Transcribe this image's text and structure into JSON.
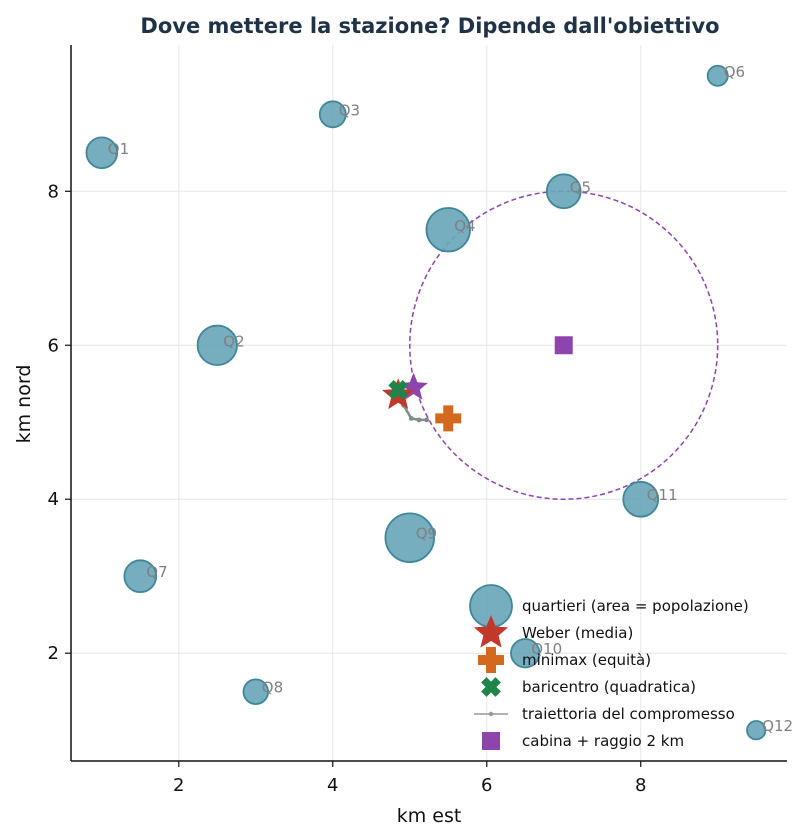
{
  "chart_data": {
    "type": "scatter",
    "title": "Dove mettere la stazione? Dipende dall'obiettivo",
    "xlabel": "km est",
    "ylabel": "km nord",
    "xlim": [
      0.6,
      9.9
    ],
    "ylim": [
      0.6,
      9.9
    ],
    "xticks": [
      2,
      4,
      6,
      8
    ],
    "yticks": [
      2,
      4,
      6,
      8
    ],
    "grid": true,
    "legend_position": "lower-right",
    "neighborhoods": [
      {
        "label": "Q1",
        "x": 1.0,
        "y": 8.5,
        "size": 1.4
      },
      {
        "label": "Q2",
        "x": 2.5,
        "y": 6.0,
        "size": 2.3
      },
      {
        "label": "Q3",
        "x": 4.0,
        "y": 9.0,
        "size": 1.0
      },
      {
        "label": "Q4",
        "x": 5.5,
        "y": 7.5,
        "size": 2.8
      },
      {
        "label": "Q5",
        "x": 7.0,
        "y": 8.0,
        "size": 1.7
      },
      {
        "label": "Q6",
        "x": 9.0,
        "y": 9.5,
        "size": 0.6
      },
      {
        "label": "Q7",
        "x": 1.5,
        "y": 3.0,
        "size": 1.5
      },
      {
        "label": "Q8",
        "x": 3.0,
        "y": 1.5,
        "size": 0.9
      },
      {
        "label": "Q9",
        "x": 5.0,
        "y": 3.5,
        "size": 3.5
      },
      {
        "label": "Q10",
        "x": 6.5,
        "y": 2.0,
        "size": 1.2
      },
      {
        "label": "Q11",
        "x": 8.0,
        "y": 4.0,
        "size": 1.8
      },
      {
        "label": "Q12",
        "x": 9.5,
        "y": 1.0,
        "size": 0.5
      }
    ],
    "weber": {
      "x": 4.85,
      "y": 5.35
    },
    "minimax": {
      "x": 5.5,
      "y": 5.05
    },
    "centroid": {
      "x": 4.85,
      "y": 5.42
    },
    "trajectory": [
      {
        "x": 4.85,
        "y": 5.42
      },
      {
        "x": 4.92,
        "y": 5.22
      },
      {
        "x": 5.02,
        "y": 5.05
      },
      {
        "x": 5.12,
        "y": 5.03
      },
      {
        "x": 5.22,
        "y": 5.03
      }
    ],
    "extra_star": {
      "x": 5.05,
      "y": 5.45
    },
    "cabin": {
      "x": 7.0,
      "y": 6.0
    },
    "cabin_radius_km": 2,
    "legend": [
      "quartieri (area = popolazione)",
      "Weber (media)",
      "minimax (equità)",
      "baricentro (quadratica)",
      "traiettoria del compromesso",
      "cabina + raggio 2 km"
    ],
    "colors": {
      "neighborhood_fill": "#6aa6ba",
      "neighborhood_edge": "#3f8799",
      "weber": "#c0392b",
      "minimax": "#d2691e",
      "centroid": "#1e8449",
      "trajectory": "#7f8c8d",
      "cabin": "#8e44ad",
      "title": "#1f3246"
    }
  }
}
